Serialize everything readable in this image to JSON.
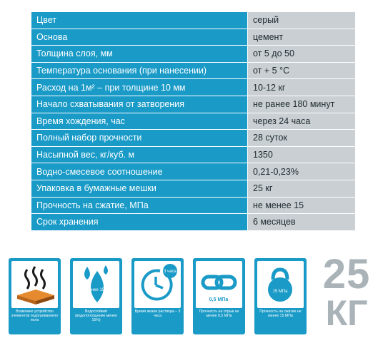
{
  "spec_rows": [
    {
      "label": "Цвет",
      "value": "серый"
    },
    {
      "label": "Основа",
      "value": "цемент"
    },
    {
      "label": "Толщина слоя, мм",
      "value": "от 5 до 50"
    },
    {
      "label": "Температура основания (при нанесении)",
      "value": "от + 5 °C"
    },
    {
      "label": "Расход на 1м² – при толщине 10 мм",
      "value": "10-12 кг"
    },
    {
      "label": "Начало схватывания от затворения",
      "value": "не ранее 180 минут"
    },
    {
      "label": "Время хождения, час",
      "value": "через 24 часа"
    },
    {
      "label": "Полный набор прочности",
      "value": "28 суток"
    },
    {
      "label": "Насыпной вес, кг/куб. м",
      "value": "1350"
    },
    {
      "label": "Водно-смесевое соотношение",
      "value": "0,21-0,23%"
    },
    {
      "label": "Упаковка в бумажные мешки",
      "value": "25 кг"
    },
    {
      "label": "Прочность на сжатие, МПа",
      "value": "не менее 15"
    },
    {
      "label": "Срок хранения",
      "value": "6 месяцев"
    }
  ],
  "icons": [
    {
      "name": "heated-floor-icon",
      "caption": "Возможно устройство элементов подогреваемого пола",
      "inner": ""
    },
    {
      "name": "water-drops-icon",
      "caption": "Водостойкий (водопоглощение менее 15%)",
      "inner": "менее 15%"
    },
    {
      "name": "clock-icon",
      "caption": "Время жизни раствора – 3 часа",
      "inner": "3 часа"
    },
    {
      "name": "chain-link-icon",
      "caption": "Прочность на отрыв не менее 0,5 МПа",
      "inner": "0,5 МПа"
    },
    {
      "name": "kettlebell-icon",
      "caption": "Прочность на сжатие не менее 15 МПа",
      "inner": "15 МПа"
    }
  ],
  "weight": {
    "number": "25",
    "unit": "КГ"
  },
  "colors": {
    "accent": "#199ac7",
    "value_bg": "#c9cfd3",
    "weight_text": "#aab3b8"
  }
}
